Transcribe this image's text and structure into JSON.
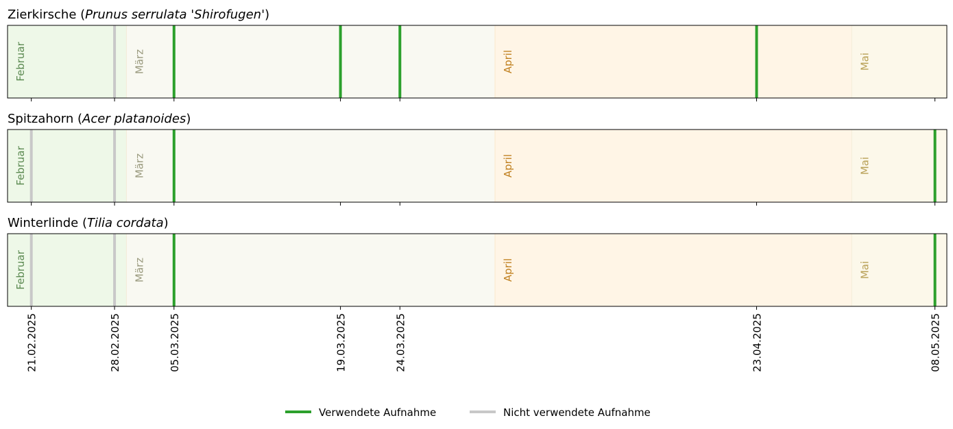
{
  "chart_data": {
    "type": "timeline",
    "date_range": [
      "2025-02-19",
      "2025-05-09"
    ],
    "months": [
      {
        "label": "Februar",
        "start": "2025-02-19",
        "end": "2025-03-01",
        "fill": "#eef8e8",
        "text_color": "#5c8a52"
      },
      {
        "label": "März",
        "start": "2025-03-01",
        "end": "2025-04-01",
        "fill": "#f9f9f2",
        "text_color": "#9a9a7e"
      },
      {
        "label": "April",
        "start": "2025-04-01",
        "end": "2025-05-01",
        "fill": "#fff5e6",
        "text_color": "#c08020"
      },
      {
        "label": "Mai",
        "start": "2025-05-01",
        "end": "2025-05-09",
        "fill": "#fcf8ea",
        "text_color": "#b8a055"
      }
    ],
    "panels": [
      {
        "title_plain": "Zierkirsche (",
        "title_italic": "Prunus serrulata 'Shirofugen'",
        "title_close": ")",
        "used": [
          "2025-03-05",
          "2025-03-19",
          "2025-03-24",
          "2025-04-23"
        ],
        "unused": [
          "2025-02-28"
        ]
      },
      {
        "title_plain": "Spitzahorn (",
        "title_italic": "Acer platanoides",
        "title_close": ")",
        "used": [
          "2025-03-05",
          "2025-05-08"
        ],
        "unused": [
          "2025-02-21",
          "2025-02-28"
        ]
      },
      {
        "title_plain": "Winterlinde (",
        "title_italic": "Tilia cordata",
        "title_close": ")",
        "used": [
          "2025-03-05",
          "2025-05-08"
        ],
        "unused": [
          "2025-02-21",
          "2025-02-28"
        ]
      }
    ],
    "x_ticks": [
      "21.02.2025",
      "28.02.2025",
      "05.03.2025",
      "19.03.2025",
      "24.03.2025",
      "23.04.2025",
      "08.05.2025"
    ],
    "legend": {
      "used_label": "Verwendete Aufnahme",
      "unused_label": "Nicht verwendete Aufnahme",
      "used_color": "#2ca02c",
      "unused_color": "#c8c8c8",
      "placement": "bottom-center"
    }
  }
}
